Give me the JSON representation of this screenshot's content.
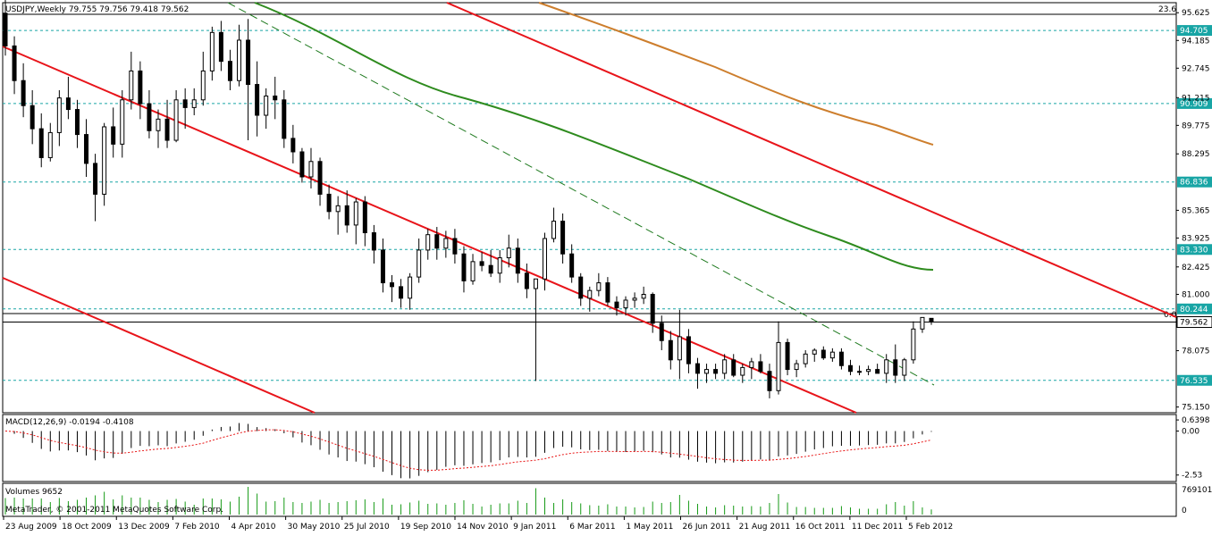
{
  "window": {
    "header": "USDJPY,Weekly  79.755 79.756 79.418 79.562",
    "fibo_top_label": "23.6",
    "fibo_mid_label": "0.0"
  },
  "chart_data": [
    {
      "type": "candlestick",
      "symbol": "USDJPY",
      "timeframe": "Weekly",
      "ohlc_last": {
        "open": 79.755,
        "high": 79.756,
        "low": 79.418,
        "close": 79.562
      },
      "ylim": [
        74.9,
        96.1
      ],
      "price_ticks": [
        "95.625",
        "94.185",
        "92.745",
        "91.215",
        "89.775",
        "88.295",
        "86.836",
        "85.365",
        "83.925",
        "82.425",
        "81.000",
        "79.562",
        "78.075",
        "76.535",
        "75.150"
      ],
      "horizontal_levels": [
        {
          "value": 94.705,
          "label": "94.705"
        },
        {
          "value": 90.909,
          "label": "90.909"
        },
        {
          "value": 86.836,
          "label": "86.836"
        },
        {
          "value": 83.33,
          "label": "83.330"
        },
        {
          "value": 80.244,
          "label": "80.244"
        },
        {
          "value": 76.535,
          "label": "76.535"
        }
      ],
      "current_price": {
        "value": 79.562,
        "label": "79.562"
      },
      "x_labels": [
        "23 Aug 2009",
        "18 Oct 2009",
        "13 Dec 2009",
        "7 Feb 2010",
        "4 Apr 2010",
        "30 May 2010",
        "25 Jul 2010",
        "19 Sep 2010",
        "14 Nov 2010",
        "9 Jan 2011",
        "6 Mar 2011",
        "1 May 2011",
        "26 Jun 2011",
        "21 Aug 2011",
        "16 Oct 2011",
        "11 Dec 2011",
        "5 Feb 2012"
      ],
      "candles": [
        [
          95.6,
          96.3,
          93.4,
          93.9
        ],
        [
          93.9,
          94.4,
          91.4,
          92.1
        ],
        [
          92.1,
          93.0,
          90.2,
          90.8
        ],
        [
          90.8,
          91.6,
          88.8,
          89.6
        ],
        [
          89.6,
          90.4,
          87.6,
          88.1
        ],
        [
          88.1,
          89.9,
          87.9,
          89.4
        ],
        [
          89.4,
          91.6,
          88.7,
          91.2
        ],
        [
          91.2,
          92.3,
          90.1,
          90.6
        ],
        [
          90.6,
          91.1,
          88.6,
          89.3
        ],
        [
          89.3,
          90.1,
          87.1,
          87.8
        ],
        [
          87.8,
          88.3,
          84.8,
          86.2
        ],
        [
          86.2,
          89.9,
          85.6,
          89.7
        ],
        [
          89.7,
          90.7,
          88.1,
          88.8
        ],
        [
          88.8,
          91.6,
          88.1,
          91.1
        ],
        [
          91.1,
          93.6,
          90.6,
          92.6
        ],
        [
          92.6,
          93.1,
          90.1,
          90.9
        ],
        [
          90.9,
          91.6,
          89.1,
          89.5
        ],
        [
          89.5,
          90.6,
          88.6,
          90.1
        ],
        [
          90.1,
          91.1,
          88.6,
          89.0
        ],
        [
          89.0,
          91.6,
          88.9,
          91.1
        ],
        [
          91.1,
          91.7,
          89.6,
          90.7
        ],
        [
          90.7,
          91.7,
          90.3,
          91.1
        ],
        [
          91.1,
          93.6,
          90.8,
          92.6
        ],
        [
          92.6,
          94.9,
          92.1,
          94.6
        ],
        [
          94.6,
          95.2,
          92.6,
          93.1
        ],
        [
          93.1,
          93.7,
          91.6,
          92.1
        ],
        [
          92.1,
          95.0,
          91.8,
          94.2
        ],
        [
          94.2,
          95.3,
          89.0,
          91.9
        ],
        [
          91.9,
          93.1,
          89.2,
          90.3
        ],
        [
          90.3,
          91.7,
          89.6,
          91.3
        ],
        [
          91.3,
          92.3,
          90.1,
          91.1
        ],
        [
          91.1,
          91.6,
          88.6,
          89.1
        ],
        [
          89.1,
          89.8,
          87.8,
          88.4
        ],
        [
          88.4,
          88.6,
          86.8,
          87.1
        ],
        [
          87.1,
          88.6,
          86.5,
          87.9
        ],
        [
          87.9,
          88.1,
          85.6,
          86.2
        ],
        [
          86.2,
          86.7,
          84.9,
          85.3
        ],
        [
          85.3,
          86.1,
          84.1,
          85.6
        ],
        [
          85.6,
          86.4,
          84.2,
          84.6
        ],
        [
          84.6,
          86.0,
          83.6,
          85.8
        ],
        [
          85.8,
          86.1,
          83.5,
          84.2
        ],
        [
          84.2,
          84.6,
          82.6,
          83.3
        ],
        [
          83.3,
          83.9,
          81.1,
          81.6
        ],
        [
          81.6,
          82.0,
          80.6,
          81.4
        ],
        [
          81.4,
          81.8,
          80.3,
          80.8
        ],
        [
          80.8,
          82.1,
          80.2,
          81.9
        ],
        [
          81.9,
          83.9,
          81.6,
          83.3
        ],
        [
          83.3,
          84.4,
          82.8,
          84.1
        ],
        [
          84.1,
          84.5,
          82.8,
          83.4
        ],
        [
          83.4,
          84.3,
          82.9,
          83.9
        ],
        [
          83.9,
          84.4,
          82.6,
          83.1
        ],
        [
          83.1,
          83.5,
          81.1,
          81.7
        ],
        [
          81.7,
          83.1,
          81.5,
          82.7
        ],
        [
          82.7,
          83.2,
          82.2,
          82.5
        ],
        [
          82.5,
          83.3,
          81.9,
          82.1
        ],
        [
          82.1,
          83.3,
          81.6,
          82.9
        ],
        [
          82.9,
          84.1,
          82.4,
          83.4
        ],
        [
          83.4,
          83.9,
          81.6,
          82.1
        ],
        [
          82.1,
          82.6,
          80.8,
          81.3
        ],
        [
          81.3,
          81.6,
          76.5,
          81.8
        ],
        [
          81.8,
          84.2,
          81.2,
          83.9
        ],
        [
          83.9,
          85.5,
          83.7,
          84.8
        ],
        [
          84.8,
          85.2,
          82.6,
          83.1
        ],
        [
          83.1,
          83.6,
          81.6,
          81.9
        ],
        [
          81.9,
          82.1,
          80.4,
          80.8
        ],
        [
          80.8,
          81.4,
          80.1,
          81.2
        ],
        [
          81.2,
          82.1,
          80.9,
          81.6
        ],
        [
          81.6,
          81.9,
          80.4,
          80.6
        ],
        [
          80.6,
          80.9,
          79.9,
          80.3
        ],
        [
          80.3,
          80.9,
          79.9,
          80.7
        ],
        [
          80.7,
          81.1,
          80.3,
          80.8
        ],
        [
          80.8,
          81.4,
          80.5,
          81.0
        ],
        [
          81.0,
          81.1,
          79.0,
          79.5
        ],
        [
          79.5,
          79.9,
          78.1,
          78.6
        ],
        [
          78.6,
          79.1,
          77.1,
          77.6
        ],
        [
          77.6,
          80.2,
          76.6,
          78.8
        ],
        [
          78.8,
          79.2,
          76.9,
          77.4
        ],
        [
          77.4,
          77.7,
          76.1,
          76.9
        ],
        [
          76.9,
          77.4,
          76.4,
          77.1
        ],
        [
          77.1,
          77.4,
          76.6,
          76.9
        ],
        [
          76.9,
          77.9,
          76.6,
          77.6
        ],
        [
          77.6,
          77.9,
          76.7,
          76.8
        ],
        [
          76.8,
          77.4,
          76.4,
          77.2
        ],
        [
          77.2,
          77.7,
          76.6,
          77.5
        ],
        [
          77.5,
          77.9,
          76.9,
          77.0
        ],
        [
          77.0,
          77.4,
          75.6,
          76.0
        ],
        [
          76.0,
          79.6,
          75.8,
          78.5
        ],
        [
          78.5,
          78.7,
          76.8,
          77.1
        ],
        [
          77.1,
          77.6,
          76.7,
          77.4
        ],
        [
          77.4,
          78.1,
          77.2,
          77.9
        ],
        [
          77.9,
          78.2,
          77.5,
          78.1
        ],
        [
          78.1,
          78.3,
          77.6,
          77.7
        ],
        [
          77.7,
          78.2,
          77.5,
          78.0
        ],
        [
          78.0,
          78.2,
          77.1,
          77.3
        ],
        [
          77.3,
          77.6,
          76.8,
          77.0
        ],
        [
          77.0,
          77.3,
          76.8,
          77.0
        ],
        [
          77.0,
          77.3,
          76.8,
          77.1
        ],
        [
          77.1,
          77.4,
          76.9,
          76.9
        ],
        [
          76.9,
          77.9,
          76.4,
          77.6
        ],
        [
          77.6,
          78.4,
          76.4,
          76.8
        ],
        [
          76.8,
          77.7,
          76.5,
          77.6
        ],
        [
          77.6,
          79.6,
          77.4,
          79.2
        ],
        [
          79.2,
          79.8,
          79.0,
          79.8
        ],
        [
          79.755,
          79.756,
          79.418,
          79.562
        ]
      ]
    },
    {
      "type": "macd",
      "title": "MACD(12,26,9) -0.0194 -0.4108",
      "params": [
        12,
        26,
        9
      ],
      "main_value": -0.0194,
      "signal_value": -0.4108,
      "ylim": [
        -2.8,
        0.85
      ],
      "y_ticks": [
        "0.6398",
        "0.00",
        "-2.53"
      ]
    },
    {
      "type": "volume",
      "title": "Volumes 9652",
      "current_value": 9652,
      "y_ticks": [
        "769101",
        "0"
      ]
    }
  ],
  "footer": {
    "copyright": "MetaTrader, © 2001-2011 MetaQuotes Software Corp."
  },
  "colors": {
    "channel_red": "#e8141a",
    "ma_green": "#2e8b1e",
    "ma_brown": "#cd7e2d",
    "trend_dashed_green": "#1f7a1f",
    "level_cyan": "#18a5a5",
    "macd_signal": "#e81414",
    "volume_bar": "#169a16"
  }
}
